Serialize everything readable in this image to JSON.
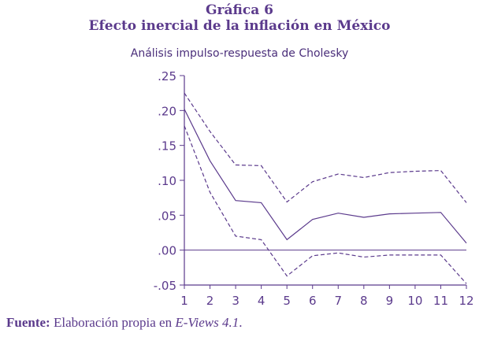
{
  "header": {
    "figure_label": "Gráfica 6",
    "title": "Efecto inercial de la inflación en México",
    "subtitle": "Análisis impulso-respuesta de Cholesky"
  },
  "caption": {
    "label": "Fuente:",
    "text_before": " Elaboración propia en ",
    "software": "E-Views 4.1",
    "text_after": "."
  },
  "colors": {
    "line": "#5b3a8c",
    "text": "#4a2e7a"
  },
  "chart_data": {
    "type": "line",
    "title": "Análisis impulso-respuesta de Cholesky",
    "x": [
      1,
      2,
      3,
      4,
      5,
      6,
      7,
      8,
      9,
      10,
      11,
      12
    ],
    "x_tick_labels": [
      "1",
      "2",
      "3",
      "4",
      "5",
      "6",
      "7",
      "8",
      "9",
      "10",
      "11",
      "12"
    ],
    "xlim": [
      1,
      12
    ],
    "ylim": [
      -0.05,
      0.25
    ],
    "y_ticks": [
      0.25,
      0.2,
      0.15,
      0.1,
      0.05,
      0.0,
      -0.05
    ],
    "y_tick_labels": [
      ".25",
      ".20",
      ".15",
      ".10",
      ".05",
      ".00",
      "-.05"
    ],
    "zero_line": true,
    "grid": false,
    "series": [
      {
        "role": "response",
        "style": "solid",
        "values": [
          0.202,
          0.128,
          0.071,
          0.068,
          0.015,
          0.044,
          0.053,
          0.047,
          0.052,
          0.053,
          0.054,
          0.01
        ]
      },
      {
        "role": "upper",
        "style": "dashed",
        "values": [
          0.225,
          0.17,
          0.122,
          0.121,
          0.069,
          0.098,
          0.109,
          0.104,
          0.111,
          0.113,
          0.114,
          0.068
        ]
      },
      {
        "role": "lower",
        "style": "dashed",
        "values": [
          0.178,
          0.083,
          0.02,
          0.015,
          -0.037,
          -0.008,
          -0.004,
          -0.01,
          -0.007,
          -0.007,
          -0.007,
          -0.048
        ]
      }
    ]
  }
}
